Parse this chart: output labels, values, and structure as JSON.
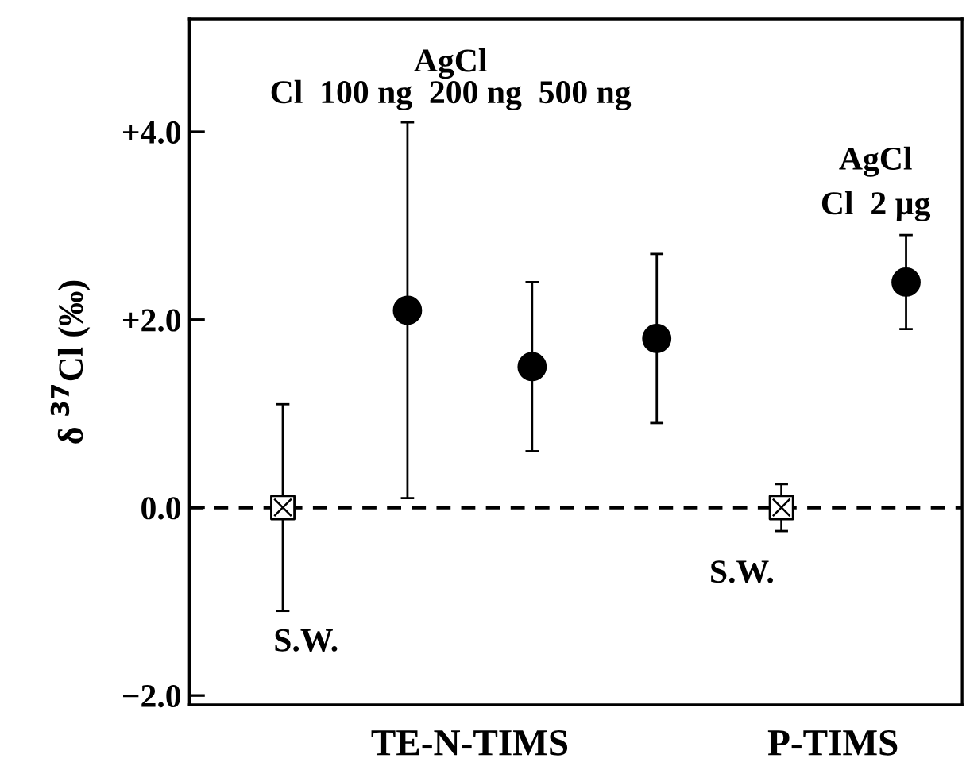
{
  "chart_data": {
    "type": "scatter",
    "ylabel": "δ $^{37}$Cl (‰)",
    "categories": [
      null,
      null,
      null,
      null,
      null,
      null
    ],
    "ylim": [
      -2.1,
      5.2
    ],
    "yticks": [
      {
        "value": -2,
        "label": "−2.0"
      },
      {
        "value": 0,
        "label": "0.0"
      },
      {
        "value": 2,
        "label": "+2.0"
      },
      {
        "value": 4,
        "label": "+4.0"
      }
    ],
    "series": [
      {
        "color": "#000000",
        "marker": "cross",
        "values": [
          0,
          null,
          null,
          null,
          0,
          null
        ],
        "errors": [
          1.1,
          null,
          null,
          null,
          0.25,
          null
        ]
      },
      {
        "color": "#000000",
        "marker": "circle",
        "values": [
          null,
          2.1,
          1.5,
          1.8,
          null,
          2.4
        ],
        "errors": [
          null,
          2.0,
          0.9,
          0.9,
          null,
          0.5
        ]
      }
    ],
    "ref_lines": [
      {
        "axis": "y",
        "value": 0,
        "line_style": "dashed",
        "color": "#000000"
      }
    ],
    "annotations": [
      "AgCl",
      "Cl  100 ng  200 ng  500 ng",
      "AgCl",
      "Cl  2 µg",
      "S.W.",
      "S.W.",
      "TE-N-TIMS",
      "P-TIMS"
    ],
    "tick_labels": "y",
    "grid": false,
    "legend": false
  }
}
